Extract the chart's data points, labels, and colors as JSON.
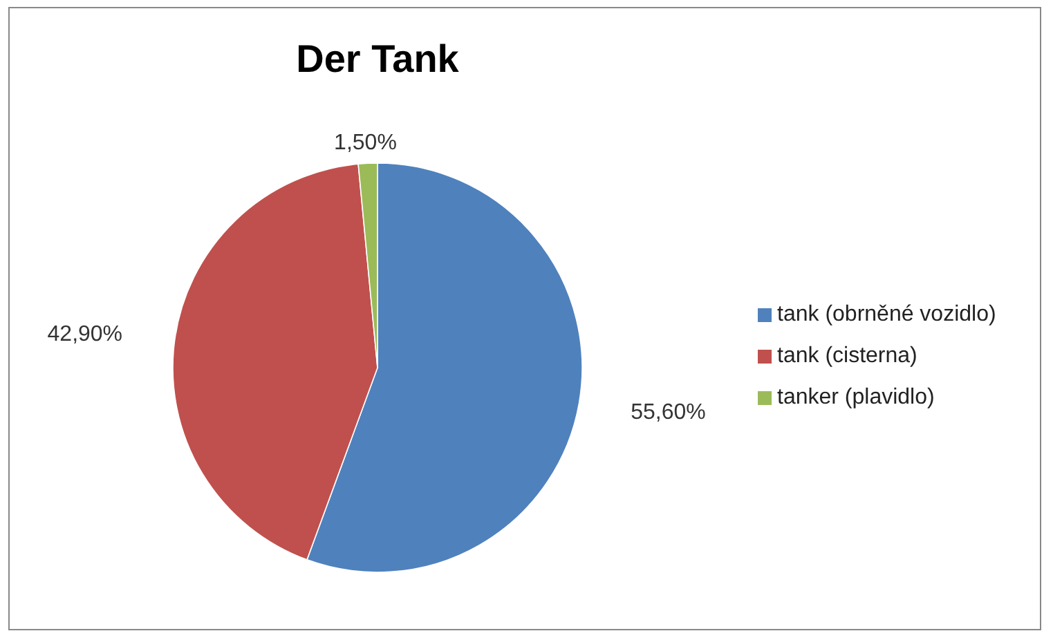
{
  "chart_data": {
    "type": "pie",
    "title": "Der Tank",
    "categories": [
      "tank (obrněné vozidlo)",
      "tank (cisterna)",
      "tanker (plavidlo)"
    ],
    "values": [
      55.6,
      42.9,
      1.5
    ],
    "value_labels": [
      "55,60%",
      "42,90%",
      "1,50%"
    ],
    "colors": [
      "#4f81bd",
      "#c0504d",
      "#9bbb59"
    ],
    "legend": "right"
  }
}
